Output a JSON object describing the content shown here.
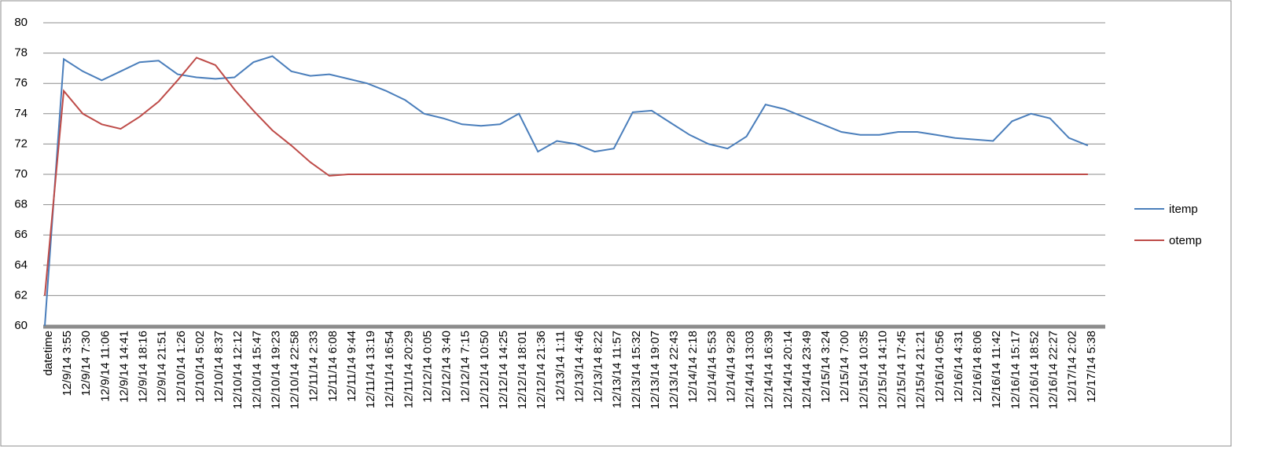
{
  "chart_data": {
    "type": "line",
    "categories": [
      "datetime",
      "12/9/14 3:55",
      "12/9/14 7:30",
      "12/9/14 11:06",
      "12/9/14 14:41",
      "12/9/14 18:16",
      "12/9/14 21:51",
      "12/10/14 1:26",
      "12/10/14 5:02",
      "12/10/14 8:37",
      "12/10/14 12:12",
      "12/10/14 15:47",
      "12/10/14 19:23",
      "12/10/14 22:58",
      "12/11/14 2:33",
      "12/11/14 6:08",
      "12/11/14 9:44",
      "12/11/14 13:19",
      "12/11/14 16:54",
      "12/11/14 20:29",
      "12/12/14 0:05",
      "12/12/14 3:40",
      "12/12/14 7:15",
      "12/12/14 10:50",
      "12/12/14 14:25",
      "12/12/14 18:01",
      "12/12/14 21:36",
      "12/13/14 1:11",
      "12/13/14 4:46",
      "12/13/14 8:22",
      "12/13/14 11:57",
      "12/13/14 15:32",
      "12/13/14 19:07",
      "12/13/14 22:43",
      "12/14/14 2:18",
      "12/14/14 5:53",
      "12/14/14 9:28",
      "12/14/14 13:03",
      "12/14/14 16:39",
      "12/14/14 20:14",
      "12/14/14 23:49",
      "12/15/14 3:24",
      "12/15/14 7:00",
      "12/15/14 10:35",
      "12/15/14 14:10",
      "12/15/14 17:45",
      "12/15/14 21:21",
      "12/16/14 0:56",
      "12/16/14 4:31",
      "12/16/14 8:06",
      "12/16/14 11:42",
      "12/16/14 15:17",
      "12/16/14 18:52",
      "12/16/14 22:27",
      "12/17/14 2:02",
      "12/17/14 5:38"
    ],
    "series": [
      {
        "name": "itemp",
        "color": "#4a7ebb",
        "values": [
          60,
          77.6,
          76.8,
          76.2,
          76.8,
          77.4,
          77.5,
          76.6,
          76.4,
          76.3,
          76.4,
          77.4,
          77.8,
          76.8,
          76.5,
          76.6,
          76.3,
          76.0,
          75.5,
          74.9,
          74.0,
          73.7,
          73.3,
          73.2,
          73.3,
          74.0,
          71.5,
          72.2,
          72.0,
          71.5,
          71.7,
          74.1,
          74.2,
          73.4,
          72.6,
          72.0,
          71.7,
          72.5,
          74.6,
          74.3,
          73.8,
          73.3,
          72.8,
          72.6,
          72.6,
          72.8,
          72.8,
          72.6,
          72.4,
          72.3,
          72.2,
          73.5,
          74.0,
          73.7,
          72.4,
          71.9
        ]
      },
      {
        "name": "otemp",
        "color": "#be4b48",
        "values": [
          62,
          75.5,
          74.0,
          73.3,
          73.0,
          73.8,
          74.8,
          76.2,
          77.7,
          77.2,
          75.6,
          74.2,
          72.9,
          71.9,
          70.8,
          69.9,
          70,
          70,
          70,
          70,
          70,
          70,
          70,
          70,
          70,
          70,
          70,
          70,
          70,
          70,
          70,
          70,
          70,
          70,
          70,
          70,
          70,
          70,
          70,
          70,
          70,
          70,
          70,
          70,
          70,
          70,
          70,
          70,
          70,
          70,
          70,
          70,
          70,
          70,
          70,
          70
        ]
      }
    ],
    "ylim": [
      60,
      80
    ],
    "yticks": [
      60,
      62,
      64,
      66,
      68,
      70,
      72,
      74,
      76,
      78,
      80
    ],
    "grid": true,
    "legend": "right"
  }
}
